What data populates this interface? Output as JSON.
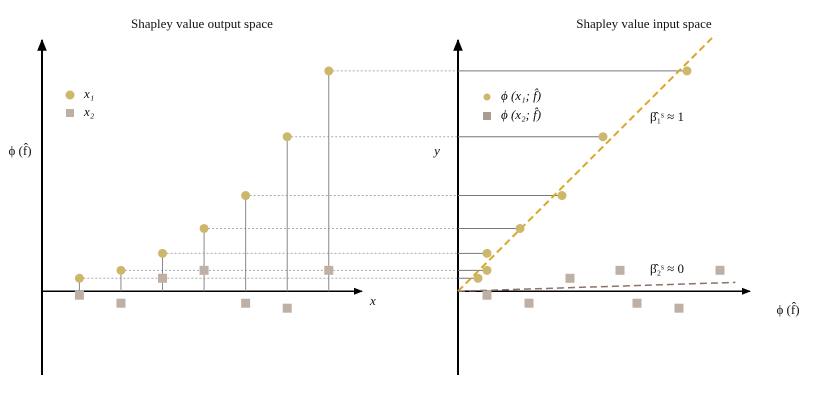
{
  "chart_data": [
    {
      "type": "scatter",
      "title": "Shapley value output space",
      "x_label": "x",
      "y_label": "ϕ (f̂)",
      "xlim": [
        0.1,
        7.8
      ],
      "ylim": [
        -4.2,
        12.6
      ],
      "legend": "upper left",
      "series": [
        {
          "name": "x₁",
          "marker": "circle",
          "color": "#cdb76a",
          "x": [
            1,
            2,
            3,
            4,
            5,
            6,
            7
          ],
          "values": [
            0.65,
            1.05,
            1.9,
            3.15,
            4.8,
            7.75,
            11.05
          ]
        },
        {
          "name": "x₂",
          "marker": "square",
          "color": "#bfb0a6",
          "x": [
            1,
            2,
            3,
            4,
            5,
            6,
            7
          ],
          "values": [
            -0.2,
            -0.6,
            0.65,
            1.05,
            -0.6,
            -0.85,
            1.05
          ]
        }
      ]
    },
    {
      "type": "scatter",
      "title": "Shapley value input space",
      "x_label": "ϕ (f̂)",
      "y_label": "y",
      "xlim": [
        0,
        14.6
      ],
      "ylim": [
        -4.2,
        12.6
      ],
      "legend": "upper left",
      "series": [
        {
          "name": "ϕ (x₁; f̂)",
          "marker": "circle",
          "color": "#cdb76a",
          "x": [
            1,
            1.45,
            1.45,
            3.1,
            5.2,
            7.25,
            11.45
          ],
          "values": [
            0.65,
            1.05,
            1.9,
            3.15,
            4.8,
            7.75,
            11.05
          ]
        },
        {
          "name": "ϕ (x₂; f̂)",
          "marker": "square",
          "color": "#bfb0a6",
          "x": [
            1.45,
            3.55,
            5.6,
            8.1,
            8.95,
            11.05,
            13.1
          ],
          "values": [
            -0.2,
            -0.6,
            0.65,
            1.05,
            -0.6,
            -0.85,
            1.05
          ]
        }
      ],
      "fits": [
        {
          "label": "β̂₁ˢ ≈ 1",
          "slope": 1,
          "color": "#d9a72a"
        },
        {
          "label": "β̂₂ˢ ≈ 0",
          "slope": 0.032,
          "color": "#8d726a"
        }
      ]
    }
  ]
}
